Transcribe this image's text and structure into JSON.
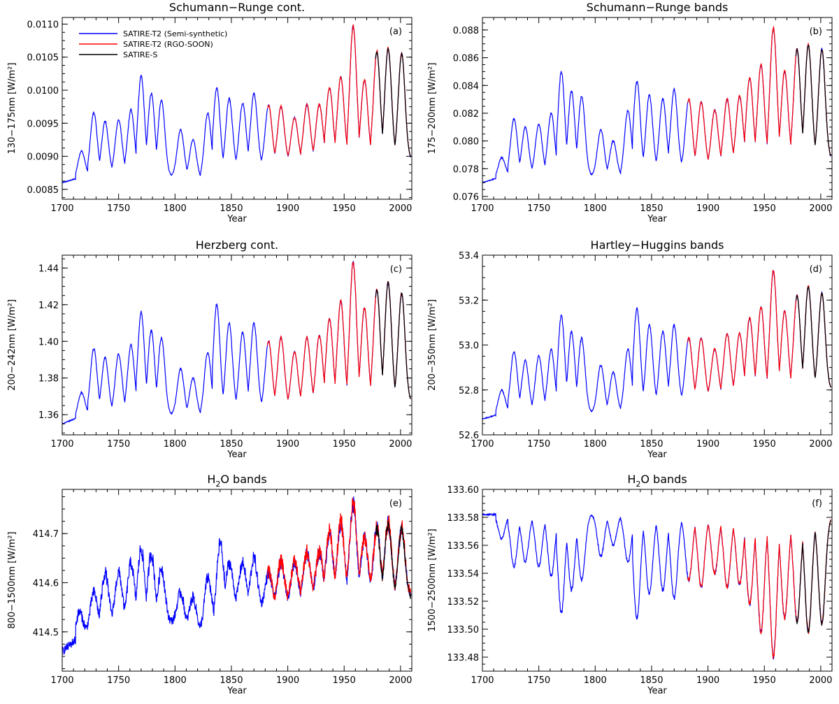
{
  "legend": [
    {
      "label": "SATIRE-T2 (Semi-synthetic)",
      "color": "#0000ff"
    },
    {
      "label": "SATIRE-T2 (RGO-SOON)",
      "color": "#ff0000"
    },
    {
      "label": "SATIRE-S",
      "color": "#000000"
    }
  ],
  "colors": {
    "semi_synthetic": "#0000ff",
    "rgo_soon": "#ff0000",
    "satire_s": "#000000"
  },
  "chart_data": [
    {
      "id": "a",
      "type": "line",
      "tag": "(a)",
      "title": "Schumann−Runge cont.",
      "title_sub": "",
      "xlabel": "Year",
      "ylabel": "130−175nm [W/m²]",
      "xlim": [
        1700,
        2010
      ],
      "ylim": [
        0.00835,
        0.0111
      ],
      "xticks": [
        1700,
        1750,
        1800,
        1850,
        1900,
        1950,
        2000
      ],
      "yticks": [
        0.0085,
        0.009,
        0.0095,
        0.01,
        0.0105,
        0.011
      ],
      "ytick_labels": [
        "0.0085",
        "0.0090",
        "0.0095",
        "0.0100",
        "0.0105",
        "0.0110"
      ],
      "baseline": [
        [
          1700,
          0.0086
        ],
        [
          1720,
          0.0087
        ],
        [
          1760,
          0.00875
        ],
        [
          1800,
          0.0087
        ],
        [
          1825,
          0.00865
        ],
        [
          1850,
          0.0088
        ],
        [
          1900,
          0.0089
        ],
        [
          1950,
          0.00895
        ],
        [
          2010,
          0.00895
        ]
      ],
      "peaks": [
        [
          1717,
          0.00908
        ],
        [
          1728,
          0.00966
        ],
        [
          1738,
          0.00953
        ],
        [
          1750,
          0.00955
        ],
        [
          1761,
          0.0097
        ],
        [
          1770,
          0.01022
        ],
        [
          1779,
          0.00995
        ],
        [
          1788,
          0.00985
        ],
        [
          1805,
          0.0094
        ],
        [
          1816,
          0.00925
        ],
        [
          1829,
          0.00965
        ],
        [
          1837,
          0.01003
        ],
        [
          1848,
          0.00987
        ],
        [
          1860,
          0.0098
        ],
        [
          1870,
          0.00995
        ],
        [
          1883,
          0.00977
        ],
        [
          1894,
          0.00975
        ],
        [
          1906,
          0.00958
        ],
        [
          1917,
          0.00978
        ],
        [
          1928,
          0.00978
        ],
        [
          1937,
          0.01003
        ],
        [
          1947,
          0.0102
        ],
        [
          1958,
          0.01097
        ],
        [
          1968,
          0.01015
        ],
        [
          1979,
          0.01058
        ],
        [
          1989,
          0.01063
        ],
        [
          2001,
          0.01055
        ]
      ],
      "noise": 2e-05,
      "start": 0.0086
    },
    {
      "id": "b",
      "type": "line",
      "tag": "(b)",
      "title": "Schumann−Runge bands",
      "title_sub": "",
      "xlabel": "Year",
      "ylabel": "175−200nm [W/m²]",
      "xlim": [
        1700,
        2010
      ],
      "ylim": [
        0.0758,
        0.0889
      ],
      "xticks": [
        1700,
        1750,
        1800,
        1850,
        1900,
        1950,
        2000
      ],
      "yticks": [
        0.076,
        0.078,
        0.08,
        0.082,
        0.084,
        0.086,
        0.088
      ],
      "ytick_labels": [
        "0.076",
        "0.078",
        "0.080",
        "0.082",
        "0.084",
        "0.086",
        "0.088"
      ],
      "baseline": [
        [
          1700,
          0.077
        ],
        [
          1720,
          0.0775
        ],
        [
          1760,
          0.0776
        ],
        [
          1800,
          0.0775
        ],
        [
          1825,
          0.0774
        ],
        [
          1850,
          0.0778
        ],
        [
          1900,
          0.0781
        ],
        [
          1950,
          0.0785
        ],
        [
          2010,
          0.0787
        ]
      ],
      "peaks": [
        [
          1717,
          0.0788
        ],
        [
          1728,
          0.0816
        ],
        [
          1738,
          0.081
        ],
        [
          1750,
          0.0812
        ],
        [
          1761,
          0.082
        ],
        [
          1770,
          0.085
        ],
        [
          1779,
          0.0836
        ],
        [
          1788,
          0.0832
        ],
        [
          1805,
          0.0808
        ],
        [
          1816,
          0.08
        ],
        [
          1829,
          0.0822
        ],
        [
          1837,
          0.0843
        ],
        [
          1848,
          0.0833
        ],
        [
          1860,
          0.083
        ],
        [
          1870,
          0.0837
        ],
        [
          1883,
          0.083
        ],
        [
          1894,
          0.0828
        ],
        [
          1906,
          0.0822
        ],
        [
          1917,
          0.083
        ],
        [
          1928,
          0.0832
        ],
        [
          1937,
          0.0845
        ],
        [
          1947,
          0.0855
        ],
        [
          1958,
          0.0881
        ],
        [
          1968,
          0.085
        ],
        [
          1979,
          0.0866
        ],
        [
          1989,
          0.0869
        ],
        [
          2001,
          0.0866
        ]
      ],
      "noise": 8e-05,
      "start": 0.077
    },
    {
      "id": "c",
      "type": "line",
      "tag": "(c)",
      "title": "Herzberg cont.",
      "title_sub": "",
      "xlabel": "Year",
      "ylabel": "200−242nm [W/m²]",
      "xlim": [
        1700,
        2010
      ],
      "ylim": [
        1.349,
        1.447
      ],
      "xticks": [
        1700,
        1750,
        1800,
        1850,
        1900,
        1950,
        2000
      ],
      "yticks": [
        1.36,
        1.38,
        1.4,
        1.42,
        1.44
      ],
      "ytick_labels": [
        "1.36",
        "1.38",
        "1.40",
        "1.42",
        "1.44"
      ],
      "baseline": [
        [
          1700,
          1.355
        ],
        [
          1720,
          1.36
        ],
        [
          1760,
          1.361
        ],
        [
          1800,
          1.36
        ],
        [
          1825,
          1.359
        ],
        [
          1850,
          1.362
        ],
        [
          1900,
          1.364
        ],
        [
          1950,
          1.366
        ],
        [
          2010,
          1.367
        ]
      ],
      "peaks": [
        [
          1717,
          1.372
        ],
        [
          1728,
          1.396
        ],
        [
          1738,
          1.391
        ],
        [
          1750,
          1.393
        ],
        [
          1761,
          1.398
        ],
        [
          1770,
          1.416
        ],
        [
          1779,
          1.406
        ],
        [
          1788,
          1.402
        ],
        [
          1805,
          1.385
        ],
        [
          1816,
          1.38
        ],
        [
          1829,
          1.394
        ],
        [
          1837,
          1.42
        ],
        [
          1848,
          1.41
        ],
        [
          1860,
          1.405
        ],
        [
          1870,
          1.41
        ],
        [
          1883,
          1.4
        ],
        [
          1894,
          1.402
        ],
        [
          1906,
          1.394
        ],
        [
          1917,
          1.402
        ],
        [
          1928,
          1.403
        ],
        [
          1937,
          1.412
        ],
        [
          1947,
          1.422
        ],
        [
          1958,
          1.443
        ],
        [
          1968,
          1.418
        ],
        [
          1979,
          1.428
        ],
        [
          1989,
          1.432
        ],
        [
          2001,
          1.426
        ]
      ],
      "noise": 0.0007,
      "start": 1.355
    },
    {
      "id": "d",
      "type": "line",
      "tag": "(d)",
      "title": "Hartley−Huggins bands",
      "title_sub": "",
      "xlabel": "Year",
      "ylabel": "200−350nm [W/m²]",
      "xlim": [
        1700,
        2010
      ],
      "ylim": [
        52.6,
        53.4
      ],
      "xticks": [
        1700,
        1750,
        1800,
        1850,
        1900,
        1950,
        2000
      ],
      "yticks": [
        52.6,
        52.8,
        53.0,
        53.2,
        53.4
      ],
      "ytick_labels": [
        "52.6",
        "52.8",
        "53.0",
        "53.2",
        "53.4"
      ],
      "baseline": [
        [
          1700,
          52.67
        ],
        [
          1720,
          52.7
        ],
        [
          1760,
          52.71
        ],
        [
          1800,
          52.7
        ],
        [
          1825,
          52.7
        ],
        [
          1850,
          52.73
        ],
        [
          1900,
          52.76
        ],
        [
          1950,
          52.78
        ],
        [
          2010,
          52.8
        ]
      ],
      "peaks": [
        [
          1717,
          52.8
        ],
        [
          1728,
          52.97
        ],
        [
          1738,
          52.93
        ],
        [
          1750,
          52.95
        ],
        [
          1761,
          52.98
        ],
        [
          1770,
          53.13
        ],
        [
          1779,
          53.06
        ],
        [
          1788,
          53.03
        ],
        [
          1805,
          52.91
        ],
        [
          1816,
          52.88
        ],
        [
          1829,
          52.98
        ],
        [
          1837,
          53.16
        ],
        [
          1848,
          53.09
        ],
        [
          1860,
          53.06
        ],
        [
          1870,
          53.09
        ],
        [
          1883,
          53.03
        ],
        [
          1894,
          53.03
        ],
        [
          1906,
          52.98
        ],
        [
          1917,
          53.05
        ],
        [
          1928,
          53.05
        ],
        [
          1937,
          53.12
        ],
        [
          1947,
          53.17
        ],
        [
          1958,
          53.33
        ],
        [
          1968,
          53.15
        ],
        [
          1979,
          53.22
        ],
        [
          1989,
          53.26
        ],
        [
          2001,
          53.23
        ]
      ],
      "noise": 0.006,
      "start": 52.67
    },
    {
      "id": "e",
      "type": "line",
      "tag": "(e)",
      "title": "H",
      "title_sub": "2",
      "title_rest": "O bands",
      "xlabel": "Year",
      "ylabel": "800−1500nm [W/m²]",
      "xlim": [
        1700,
        2010
      ],
      "ylim": [
        414.42,
        414.79
      ],
      "xticks": [
        1700,
        1750,
        1800,
        1850,
        1900,
        1950,
        2000
      ],
      "yticks": [
        414.5,
        414.6,
        414.7
      ],
      "ytick_labels": [
        "414.5",
        "414.6",
        "414.7"
      ],
      "baseline": [
        [
          1700,
          414.46
        ],
        [
          1720,
          414.5
        ],
        [
          1740,
          414.52
        ],
        [
          1760,
          414.53
        ],
        [
          1800,
          414.52
        ],
        [
          1825,
          414.5
        ],
        [
          1850,
          414.56
        ],
        [
          1880,
          414.55
        ],
        [
          1900,
          414.56
        ],
        [
          1950,
          414.58
        ],
        [
          2010,
          414.57
        ]
      ],
      "peaks": [
        [
          1715,
          414.54
        ],
        [
          1728,
          414.58
        ],
        [
          1738,
          414.62
        ],
        [
          1750,
          414.62
        ],
        [
          1761,
          414.64
        ],
        [
          1770,
          414.67
        ],
        [
          1779,
          414.66
        ],
        [
          1788,
          414.63
        ],
        [
          1805,
          414.58
        ],
        [
          1816,
          414.57
        ],
        [
          1829,
          414.61
        ],
        [
          1840,
          414.68
        ],
        [
          1848,
          414.64
        ],
        [
          1860,
          414.64
        ],
        [
          1870,
          414.65
        ],
        [
          1883,
          414.62
        ],
        [
          1894,
          414.64
        ],
        [
          1906,
          414.64
        ],
        [
          1917,
          414.66
        ],
        [
          1928,
          414.66
        ],
        [
          1937,
          414.7
        ],
        [
          1947,
          414.72
        ],
        [
          1958,
          414.76
        ],
        [
          1968,
          414.69
        ],
        [
          1979,
          414.71
        ],
        [
          1989,
          414.72
        ],
        [
          2001,
          414.71
        ]
      ],
      "noise": 0.022,
      "start": 414.46
    },
    {
      "id": "f",
      "type": "line",
      "tag": "(f)",
      "title": "H",
      "title_sub": "2",
      "title_rest": "O bands",
      "xlabel": "Year",
      "ylabel": "1500−2500nm [W/m²]",
      "xlim": [
        1700,
        2010
      ],
      "ylim": [
        133.47,
        133.6
      ],
      "xticks": [
        1700,
        1750,
        1800,
        1850,
        1900,
        1950,
        2000
      ],
      "yticks": [
        133.48,
        133.5,
        133.52,
        133.54,
        133.56,
        133.58,
        133.6
      ],
      "ytick_labels": [
        "133.48",
        "133.50",
        "133.52",
        "133.54",
        "133.56",
        "133.58",
        "133.60"
      ],
      "baseline": [
        [
          1700,
          133.582
        ],
        [
          1800,
          133.582
        ],
        [
          2010,
          133.58
        ]
      ],
      "peaks": [
        [
          1717,
          133.565
        ],
        [
          1728,
          133.545
        ],
        [
          1738,
          133.548
        ],
        [
          1750,
          133.545
        ],
        [
          1761,
          133.538
        ],
        [
          1770,
          133.512
        ],
        [
          1779,
          133.528
        ],
        [
          1788,
          133.535
        ],
        [
          1805,
          133.552
        ],
        [
          1816,
          133.56
        ],
        [
          1829,
          133.548
        ],
        [
          1837,
          133.508
        ],
        [
          1848,
          133.525
        ],
        [
          1860,
          133.528
        ],
        [
          1870,
          133.522
        ],
        [
          1883,
          133.535
        ],
        [
          1894,
          133.53
        ],
        [
          1906,
          133.54
        ],
        [
          1917,
          133.53
        ],
        [
          1928,
          133.532
        ],
        [
          1937,
          133.518
        ],
        [
          1947,
          133.498
        ],
        [
          1958,
          133.48
        ],
        [
          1968,
          133.508
        ],
        [
          1979,
          133.505
        ],
        [
          1989,
          133.498
        ],
        [
          2001,
          133.504
        ]
      ],
      "inverted": true,
      "noise": 0.0015,
      "start": 133.582
    }
  ]
}
